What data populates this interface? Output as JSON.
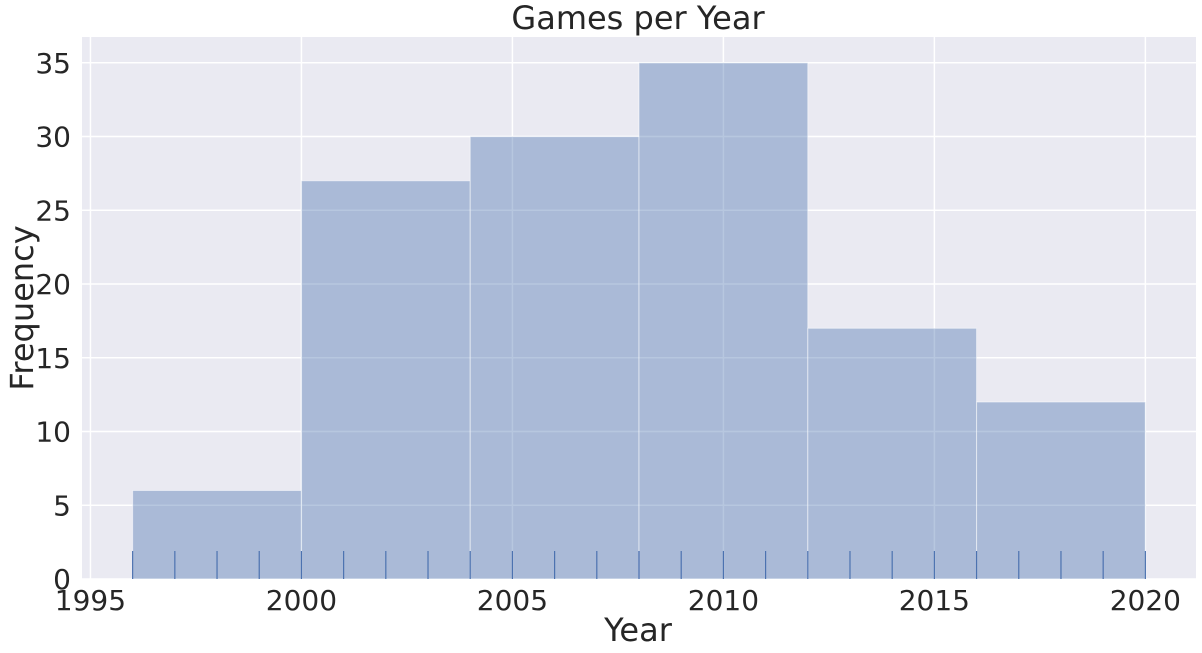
{
  "chart_data": {
    "type": "bar",
    "title": "Games per Year",
    "xlabel": "Year",
    "ylabel": "Frequency",
    "xlim": [
      1994.8,
      2021.2
    ],
    "ylim": [
      0,
      36.75
    ],
    "grid": true,
    "x_ticks": [
      1995,
      2000,
      2005,
      2010,
      2015,
      2020
    ],
    "x_tick_labels": [
      "1995",
      "2000",
      "2005",
      "2010",
      "2015",
      "2020"
    ],
    "y_ticks": [
      0,
      5,
      10,
      15,
      20,
      25,
      30,
      35
    ],
    "y_tick_labels": [
      "0",
      "5",
      "10",
      "15",
      "20",
      "25",
      "30",
      "35"
    ],
    "bins": [
      {
        "start": 1996,
        "end": 2000,
        "value": 6
      },
      {
        "start": 2000,
        "end": 2004,
        "value": 27
      },
      {
        "start": 2004,
        "end": 2008,
        "value": 30
      },
      {
        "start": 2008,
        "end": 2012,
        "value": 35
      },
      {
        "start": 2012,
        "end": 2016,
        "value": 17
      },
      {
        "start": 2016,
        "end": 2020,
        "value": 12
      }
    ],
    "rug_values": [
      1996,
      1997,
      1998,
      1999,
      2000,
      2001,
      2002,
      2003,
      2004,
      2005,
      2006,
      2007,
      2008,
      2009,
      2010,
      2011,
      2012,
      2013,
      2014,
      2015,
      2016,
      2017,
      2018,
      2019,
      2020
    ],
    "colors": {
      "plot_background": "#eaeaf2",
      "grid": "#ffffff",
      "bar_fill": "#4c72b0",
      "bar_opacity": 0.4,
      "rug": "#4c72b0",
      "text": "#262626"
    }
  }
}
